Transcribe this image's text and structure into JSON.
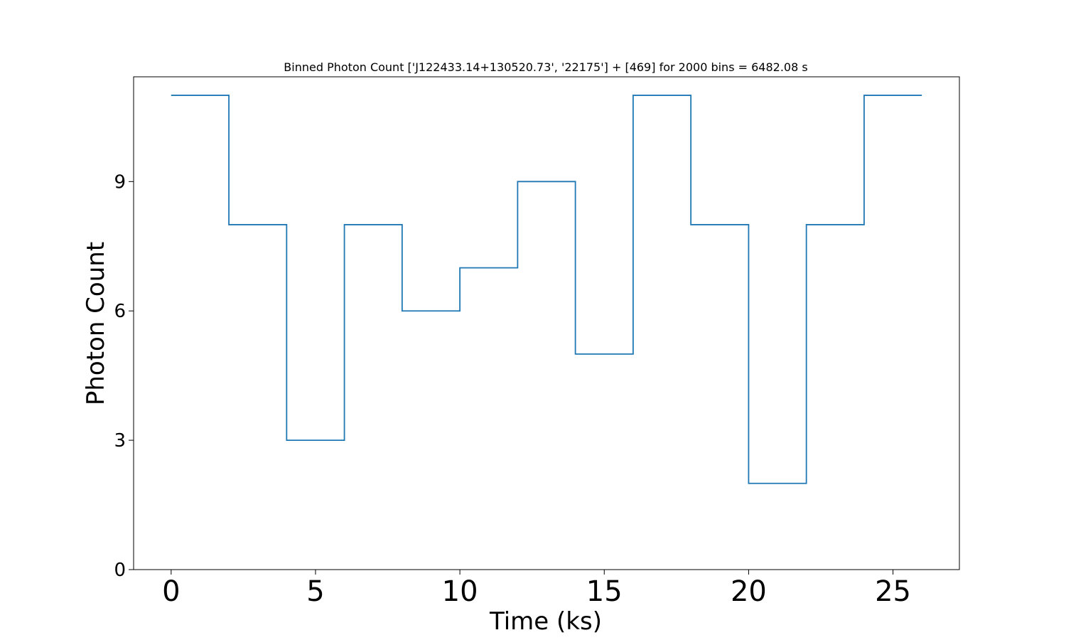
{
  "chart_data": {
    "type": "line",
    "drawstyle": "steps-post",
    "title": "Binned Photon Count ['J122433.14+130520.73', '22175'] + [469] for 2000 bins = 6482.08 s",
    "xlabel": "Time (ks)",
    "ylabel": "Photon Count",
    "xlim": [
      -1.3,
      27.3
    ],
    "ylim": [
      0,
      11.43
    ],
    "xticks": [
      0,
      5,
      10,
      15,
      20,
      25
    ],
    "yticks": [
      0,
      3,
      6,
      9
    ],
    "grid": false,
    "legend": "none",
    "series": [
      {
        "color": "#1f77b4",
        "x": [
          0,
          2,
          4,
          6,
          8,
          10,
          12,
          14,
          16,
          18,
          20,
          22,
          24,
          26
        ],
        "y": [
          11,
          8,
          3,
          8,
          6,
          7,
          9,
          5,
          11,
          8,
          2,
          8,
          11,
          11
        ]
      }
    ]
  }
}
